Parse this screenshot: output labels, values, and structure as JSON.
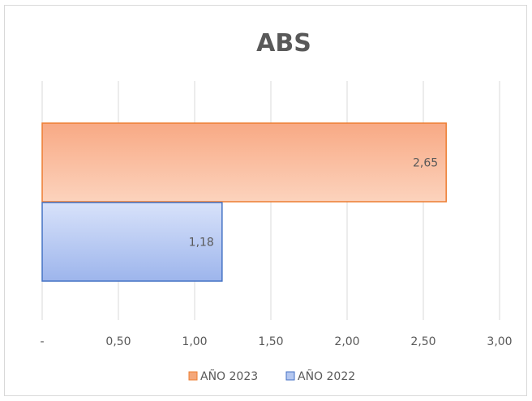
{
  "chart_data": {
    "type": "bar",
    "orientation": "horizontal",
    "title": "ABS",
    "xlim": [
      0,
      3
    ],
    "x_ticks": [
      0,
      0.5,
      1.0,
      1.5,
      2.0,
      2.5,
      3.0
    ],
    "x_tick_labels": [
      "-",
      "0,50",
      "1,00",
      "1,50",
      "2,00",
      "2,50",
      "3,00"
    ],
    "grid": "vertical",
    "legend_position": "bottom",
    "series": [
      {
        "name": "AÑO 2023",
        "value": 2.65,
        "label": "2,65",
        "color": "#f4a77a",
        "border": "#ed7d31"
      },
      {
        "name": "AÑO 2022",
        "value": 1.18,
        "label": "1,18",
        "color": "#b4c7f0",
        "border": "#4472c4"
      }
    ]
  }
}
